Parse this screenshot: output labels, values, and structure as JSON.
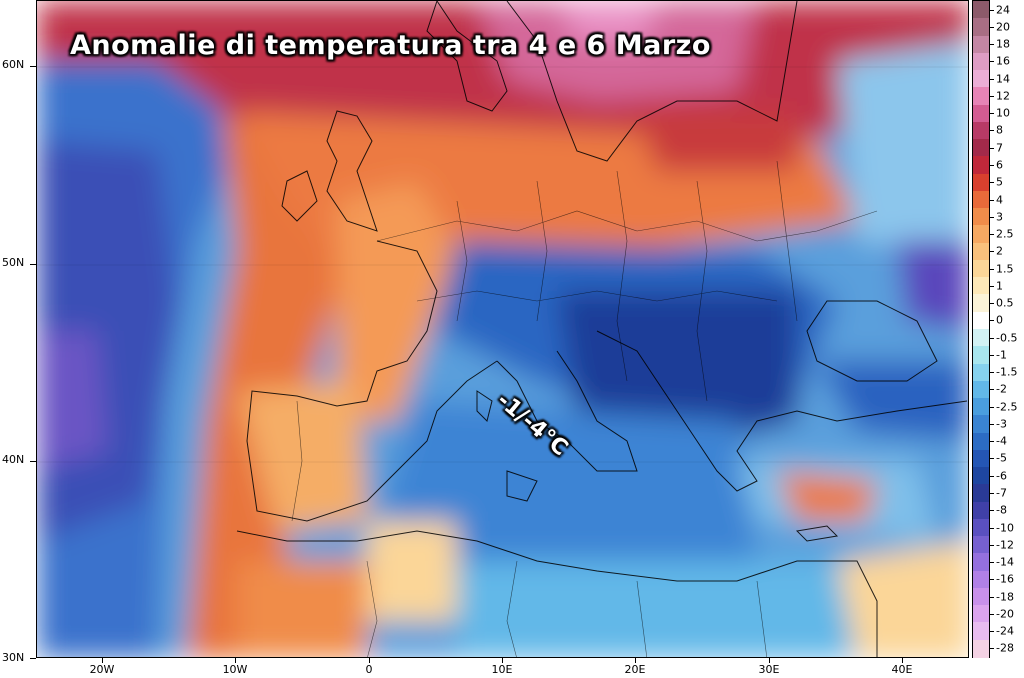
{
  "title": "Anomalie di temperatura tra 4 e 6 Marzo",
  "annotation": "-1/-4°C",
  "lat_labels": [
    "60N",
    "50N",
    "40N",
    "30N"
  ],
  "lon_labels": [
    "20W",
    "10W",
    "0",
    "10E",
    "20E",
    "30E",
    "40E"
  ],
  "colorbar": {
    "labels": [
      "24",
      "20",
      "18",
      "16",
      "14",
      "12",
      "10",
      "8",
      "7",
      "6",
      "5",
      "4",
      "3",
      "2.5",
      "2",
      "1.5",
      "1",
      "0.5",
      "0",
      "-0.5",
      "-1",
      "-1.5",
      "-2",
      "-2.5",
      "-3",
      "-4",
      "-5",
      "-6",
      "-7",
      "-8",
      "-10",
      "-12",
      "-14",
      "-16",
      "-18",
      "-20",
      "-24",
      "-28"
    ],
    "colors": [
      "#8c5a6a",
      "#a86e84",
      "#c486a4",
      "#de9cc4",
      "#ecaed6",
      "#e784b6",
      "#d35c92",
      "#b83a66",
      "#a22a4a",
      "#c0283a",
      "#d8402e",
      "#e86a3a",
      "#f08c4a",
      "#f6a862",
      "#f9c07c",
      "#fbd698",
      "#fde8b8",
      "#fbf3d8",
      "#ffffff",
      "#d2f2f4",
      "#a8e6ee",
      "#86d2ee",
      "#62b8e8",
      "#4a9ede",
      "#3a84d2",
      "#2c6cc4",
      "#2456b4",
      "#1e46a0",
      "#2a3a96",
      "#4040a8",
      "#5a50c0",
      "#7660d0",
      "#9470de",
      "#b080e6",
      "#c890ea",
      "#dba4ee",
      "#e8bcf0",
      "#f4d2e4"
    ]
  },
  "map_colors": {
    "ocean_warm": "#e8683a",
    "atlantic_cold": "#3a7ed4",
    "deep_cold": "#3c52b4",
    "north_hot": "#b8304c",
    "scandinavia": "#d46894",
    "central_warm": "#f08c4a",
    "balkan_cold": "#1e46a0",
    "med_cold": "#4a9ede",
    "neutral": "#fbf3d8"
  }
}
